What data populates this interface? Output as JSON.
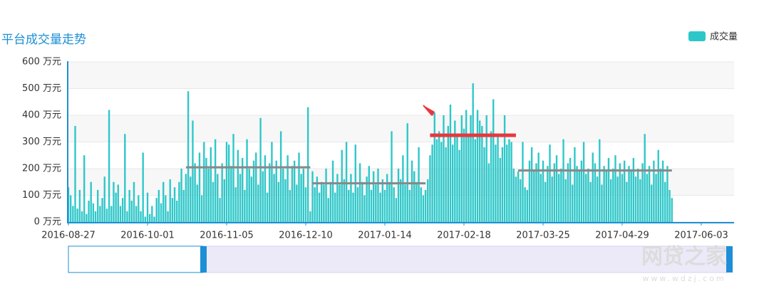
{
  "chart_data": {
    "type": "bar",
    "title": "平台成交量走势",
    "color": "#2ec7c9",
    "legend": {
      "name": "成交量",
      "position": "top-right"
    },
    "watermark": "网贷之家",
    "watermark_url": "www.wdzj.com",
    "ylim": [
      0,
      600
    ],
    "yticks": [
      {
        "value": 0,
        "label": "0 万元"
      },
      {
        "value": 100,
        "label": "100 万元"
      },
      {
        "value": 200,
        "label": "200 万元"
      },
      {
        "value": 300,
        "label": "300 万元"
      },
      {
        "value": 400,
        "label": "400 万元"
      },
      {
        "value": 500,
        "label": "500 万元"
      },
      {
        "value": 600,
        "label": "600 万元"
      }
    ],
    "grid": true,
    "categories": [
      "2016-08-27",
      null,
      null,
      null,
      null,
      null,
      null,
      null,
      null,
      null,
      null,
      null,
      null,
      null,
      null,
      null,
      null,
      null,
      null,
      null,
      null,
      null,
      null,
      null,
      null,
      null,
      null,
      null,
      null,
      null,
      null,
      null,
      null,
      null,
      null,
      "2016-10-01",
      null,
      null,
      null,
      null,
      null,
      null,
      null,
      null,
      null,
      null,
      null,
      null,
      null,
      null,
      null,
      null,
      null,
      null,
      null,
      null,
      null,
      null,
      null,
      null,
      null,
      null,
      null,
      null,
      null,
      null,
      null,
      null,
      null,
      null,
      "2016-11-05",
      null,
      null,
      null,
      null,
      null,
      null,
      null,
      null,
      null,
      null,
      null,
      null,
      null,
      null,
      null,
      null,
      null,
      null,
      null,
      null,
      null,
      null,
      null,
      null,
      null,
      null,
      null,
      null,
      null,
      null,
      null,
      null,
      null,
      null,
      "2016-12-10",
      null,
      null,
      null,
      null,
      null,
      null,
      null,
      null,
      null,
      null,
      null,
      null,
      null,
      null,
      null,
      null,
      null,
      null,
      null,
      null,
      null,
      null,
      null,
      null,
      null,
      null,
      null,
      null,
      null,
      null,
      null,
      null,
      null,
      null,
      "2017-01-14",
      null,
      null,
      null,
      null,
      null,
      null,
      null,
      null,
      null,
      null,
      null,
      null,
      null,
      null,
      null,
      null,
      null,
      null,
      null,
      null,
      null,
      null,
      null,
      null,
      null,
      null,
      null,
      null,
      null,
      null,
      null,
      null,
      null,
      null,
      "2017-02-18",
      null,
      null,
      null,
      null,
      null,
      null,
      null,
      null,
      null,
      null,
      null,
      null,
      null,
      null,
      null,
      null,
      null,
      null,
      null,
      null,
      null,
      null,
      null,
      null,
      null,
      null,
      null,
      null,
      null,
      null,
      null,
      null,
      null,
      null,
      "2017-03-25",
      null,
      null,
      null,
      null,
      null,
      null,
      null,
      null,
      null,
      null,
      null,
      null,
      null,
      null,
      null,
      null,
      null,
      null,
      null,
      null,
      null,
      null,
      null,
      null,
      null,
      null,
      null,
      null,
      null,
      null,
      null,
      null,
      null,
      null,
      "2017-04-29",
      null,
      null,
      null,
      null,
      null,
      null,
      null,
      null,
      null,
      null,
      null,
      null,
      null,
      null,
      null,
      null,
      null,
      null,
      null,
      null,
      null,
      null,
      null,
      null,
      null,
      null,
      null,
      null,
      null,
      null,
      null,
      null,
      null,
      null,
      "2017-06-03"
    ],
    "values": [
      130,
      100,
      60,
      360,
      50,
      120,
      40,
      250,
      30,
      80,
      150,
      70,
      40,
      120,
      60,
      90,
      170,
      50,
      420,
      60,
      150,
      110,
      140,
      60,
      90,
      330,
      40,
      120,
      80,
      150,
      60,
      100,
      40,
      260,
      20,
      110,
      30,
      60,
      20,
      90,
      120,
      70,
      150,
      100,
      40,
      160,
      90,
      130,
      80,
      150,
      200,
      120,
      180,
      490,
      170,
      380,
      220,
      140,
      260,
      100,
      300,
      240,
      200,
      280,
      150,
      310,
      180,
      90,
      220,
      160,
      300,
      290,
      210,
      330,
      130,
      270,
      180,
      240,
      120,
      310,
      200,
      170,
      230,
      260,
      140,
      390,
      190,
      250,
      110,
      220,
      300,
      180,
      230,
      150,
      340,
      200,
      160,
      250,
      120,
      210,
      230,
      140,
      260,
      180,
      200,
      130,
      430,
      40,
      190,
      130,
      170,
      110,
      150,
      140,
      200,
      90,
      150,
      230,
      110,
      180,
      140,
      270,
      160,
      300,
      120,
      180,
      110,
      290,
      130,
      220,
      150,
      100,
      170,
      210,
      120,
      190,
      140,
      200,
      110,
      160,
      120,
      180,
      150,
      340,
      130,
      90,
      200,
      160,
      250,
      140,
      370,
      120,
      230,
      190,
      150,
      280,
      130,
      100,
      120,
      160,
      250,
      290,
      410,
      310,
      340,
      300,
      400,
      280,
      360,
      440,
      290,
      380,
      320,
      270,
      400,
      350,
      420,
      330,
      400,
      520,
      310,
      420,
      380,
      360,
      280,
      400,
      220,
      340,
      460,
      290,
      320,
      240,
      280,
      400,
      290,
      310,
      300,
      200,
      170,
      190,
      160,
      300,
      130,
      120,
      230,
      280,
      190,
      220,
      260,
      180,
      230,
      150,
      210,
      290,
      170,
      220,
      250,
      180,
      200,
      310,
      160,
      220,
      240,
      140,
      280,
      210,
      190,
      230,
      300,
      180,
      200,
      150,
      260,
      220,
      170,
      310,
      140,
      210,
      190,
      240,
      160,
      200,
      250,
      170,
      220,
      180,
      230,
      150,
      210,
      190,
      240,
      170,
      200,
      160,
      220,
      330,
      180,
      210,
      140,
      230,
      180,
      270,
      200,
      230,
      150,
      210,
      120,
      90,
      null,
      null,
      null,
      null,
      null,
      null,
      null,
      null,
      null,
      null,
      null,
      null,
      null
    ],
    "reference_lines": [
      {
        "value": 205,
        "color": "#888888",
        "xrange": [
          52,
          107
        ]
      },
      {
        "value": 145,
        "color": "#888888",
        "xrange": [
          108,
          158
        ]
      },
      {
        "value": 325,
        "color": "#e8373f",
        "xrange": [
          160,
          198
        ]
      },
      {
        "value": 193,
        "color": "#888888",
        "xrange": [
          199,
          267
        ]
      }
    ]
  }
}
